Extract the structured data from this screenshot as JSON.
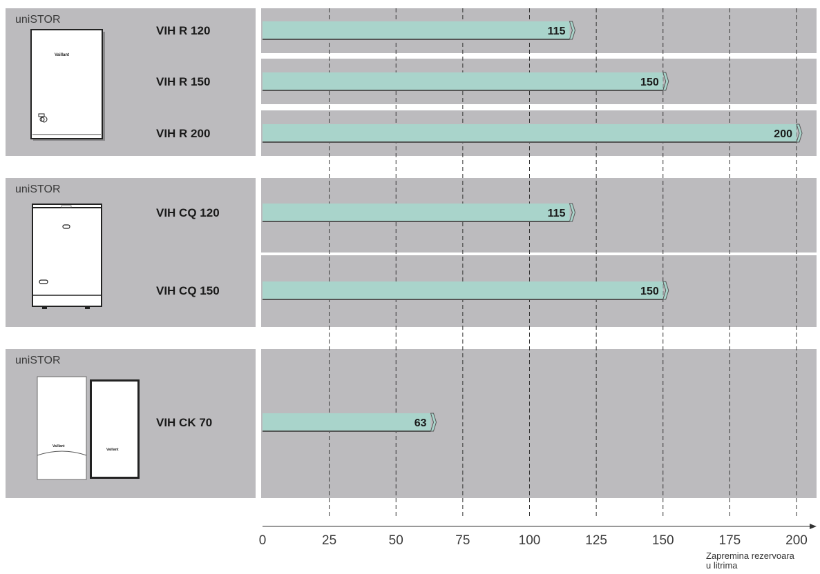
{
  "colors": {
    "panel": "#bcbbbe",
    "bar_fill": "#a9d4cb",
    "bar_edge": "#555555",
    "grid": "#333333",
    "appliance_body": "#ffffff",
    "appliance_outline": "#222222"
  },
  "axis_title_lines": [
    "Zapremina rezervoara",
    "u litrima"
  ],
  "groups": [
    {
      "label": "uniSTOR",
      "icon": "wall-boiler-tank-icon",
      "logo": "Vaillant"
    },
    {
      "label": "uniSTOR",
      "icon": "floor-cylinder-tank-icon",
      "logo": "Vaillant"
    },
    {
      "label": "uniSTOR",
      "icon": "boiler-with-tank-icon",
      "logo": "Vaillant"
    }
  ],
  "chart_data": {
    "type": "bar",
    "orientation": "horizontal",
    "title": "",
    "xlabel": "Zapremina rezervoara u litrima",
    "ylabel": "",
    "xlim": [
      0,
      200
    ],
    "xticks": [
      0,
      25,
      50,
      75,
      100,
      125,
      150,
      175,
      200
    ],
    "grid": true,
    "categories": [
      "VIH R 120",
      "VIH R 150",
      "VIH R 200",
      "VIH CQ 120",
      "VIH CQ 150",
      "VIH CK 70"
    ],
    "values": [
      115,
      150,
      200,
      115,
      150,
      63
    ],
    "value_labels": [
      "115",
      "150",
      "200",
      "115",
      "150",
      "63"
    ],
    "category_groups": [
      0,
      0,
      0,
      1,
      1,
      2
    ]
  }
}
